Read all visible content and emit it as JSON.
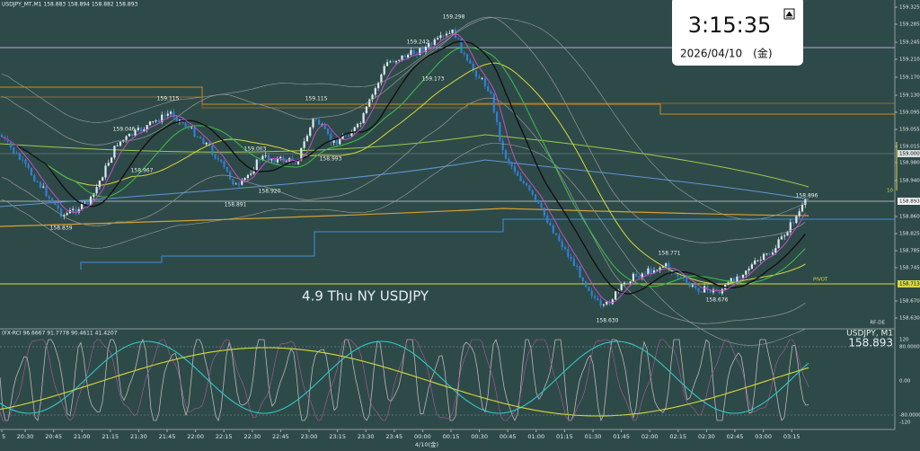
{
  "header": {
    "symbol_info": "USDJPY_MT,M1  158.883 158.894 158.882 158.893"
  },
  "clock": {
    "time": "3:15:35",
    "date": "2026/04/10　(金)"
  },
  "annotation": "4.9 Thu NY USDJPY",
  "price_labels": [
    "159.298",
    "159.242",
    "159.173",
    "159.115",
    "159.115",
    "159.046",
    "158.967",
    "159.003",
    "158.993",
    "158.920",
    "158.891",
    "158.839",
    "158.771",
    "158.676",
    "158.630",
    "158.896"
  ],
  "price_axis": {
    "ticks": [
      "159.325",
      "159.285",
      "159.245",
      "159.210",
      "159.170",
      "159.130",
      "159.095",
      "159.055",
      "159.015",
      "158.980",
      "158.940",
      "158.860",
      "158.825",
      "158.785",
      "158.745",
      "158.670",
      "158.630"
    ],
    "boxes": [
      "159.000",
      "158.893",
      "158.713"
    ],
    "pivot": "PIVOT",
    "marker": "10",
    "footer": "RF-DE"
  },
  "sub_window": {
    "indicator": "(FX-RCI 96.6667 91.7778 90.4611 41.4207",
    "symbol": "USDJPY, M1",
    "price": "158.893",
    "ticks": [
      "120",
      "80.0000",
      "0.00",
      "-80.0000",
      "-120"
    ]
  },
  "time_axis": {
    "labels": [
      "5",
      "20:30",
      "20:45",
      "21:00",
      "21:15",
      "21:30",
      "21:45",
      "22:00",
      "22:15",
      "22:30",
      "22:45",
      "23:00",
      "23:15",
      "23:30",
      "23:45",
      "00:00",
      "00:15",
      "00:30",
      "00:45",
      "01:00",
      "01:15",
      "01:30",
      "01:45",
      "02:00",
      "02:15",
      "02:30",
      "02:45",
      "03:00",
      "03:15"
    ],
    "date": "4/10(金)"
  }
}
